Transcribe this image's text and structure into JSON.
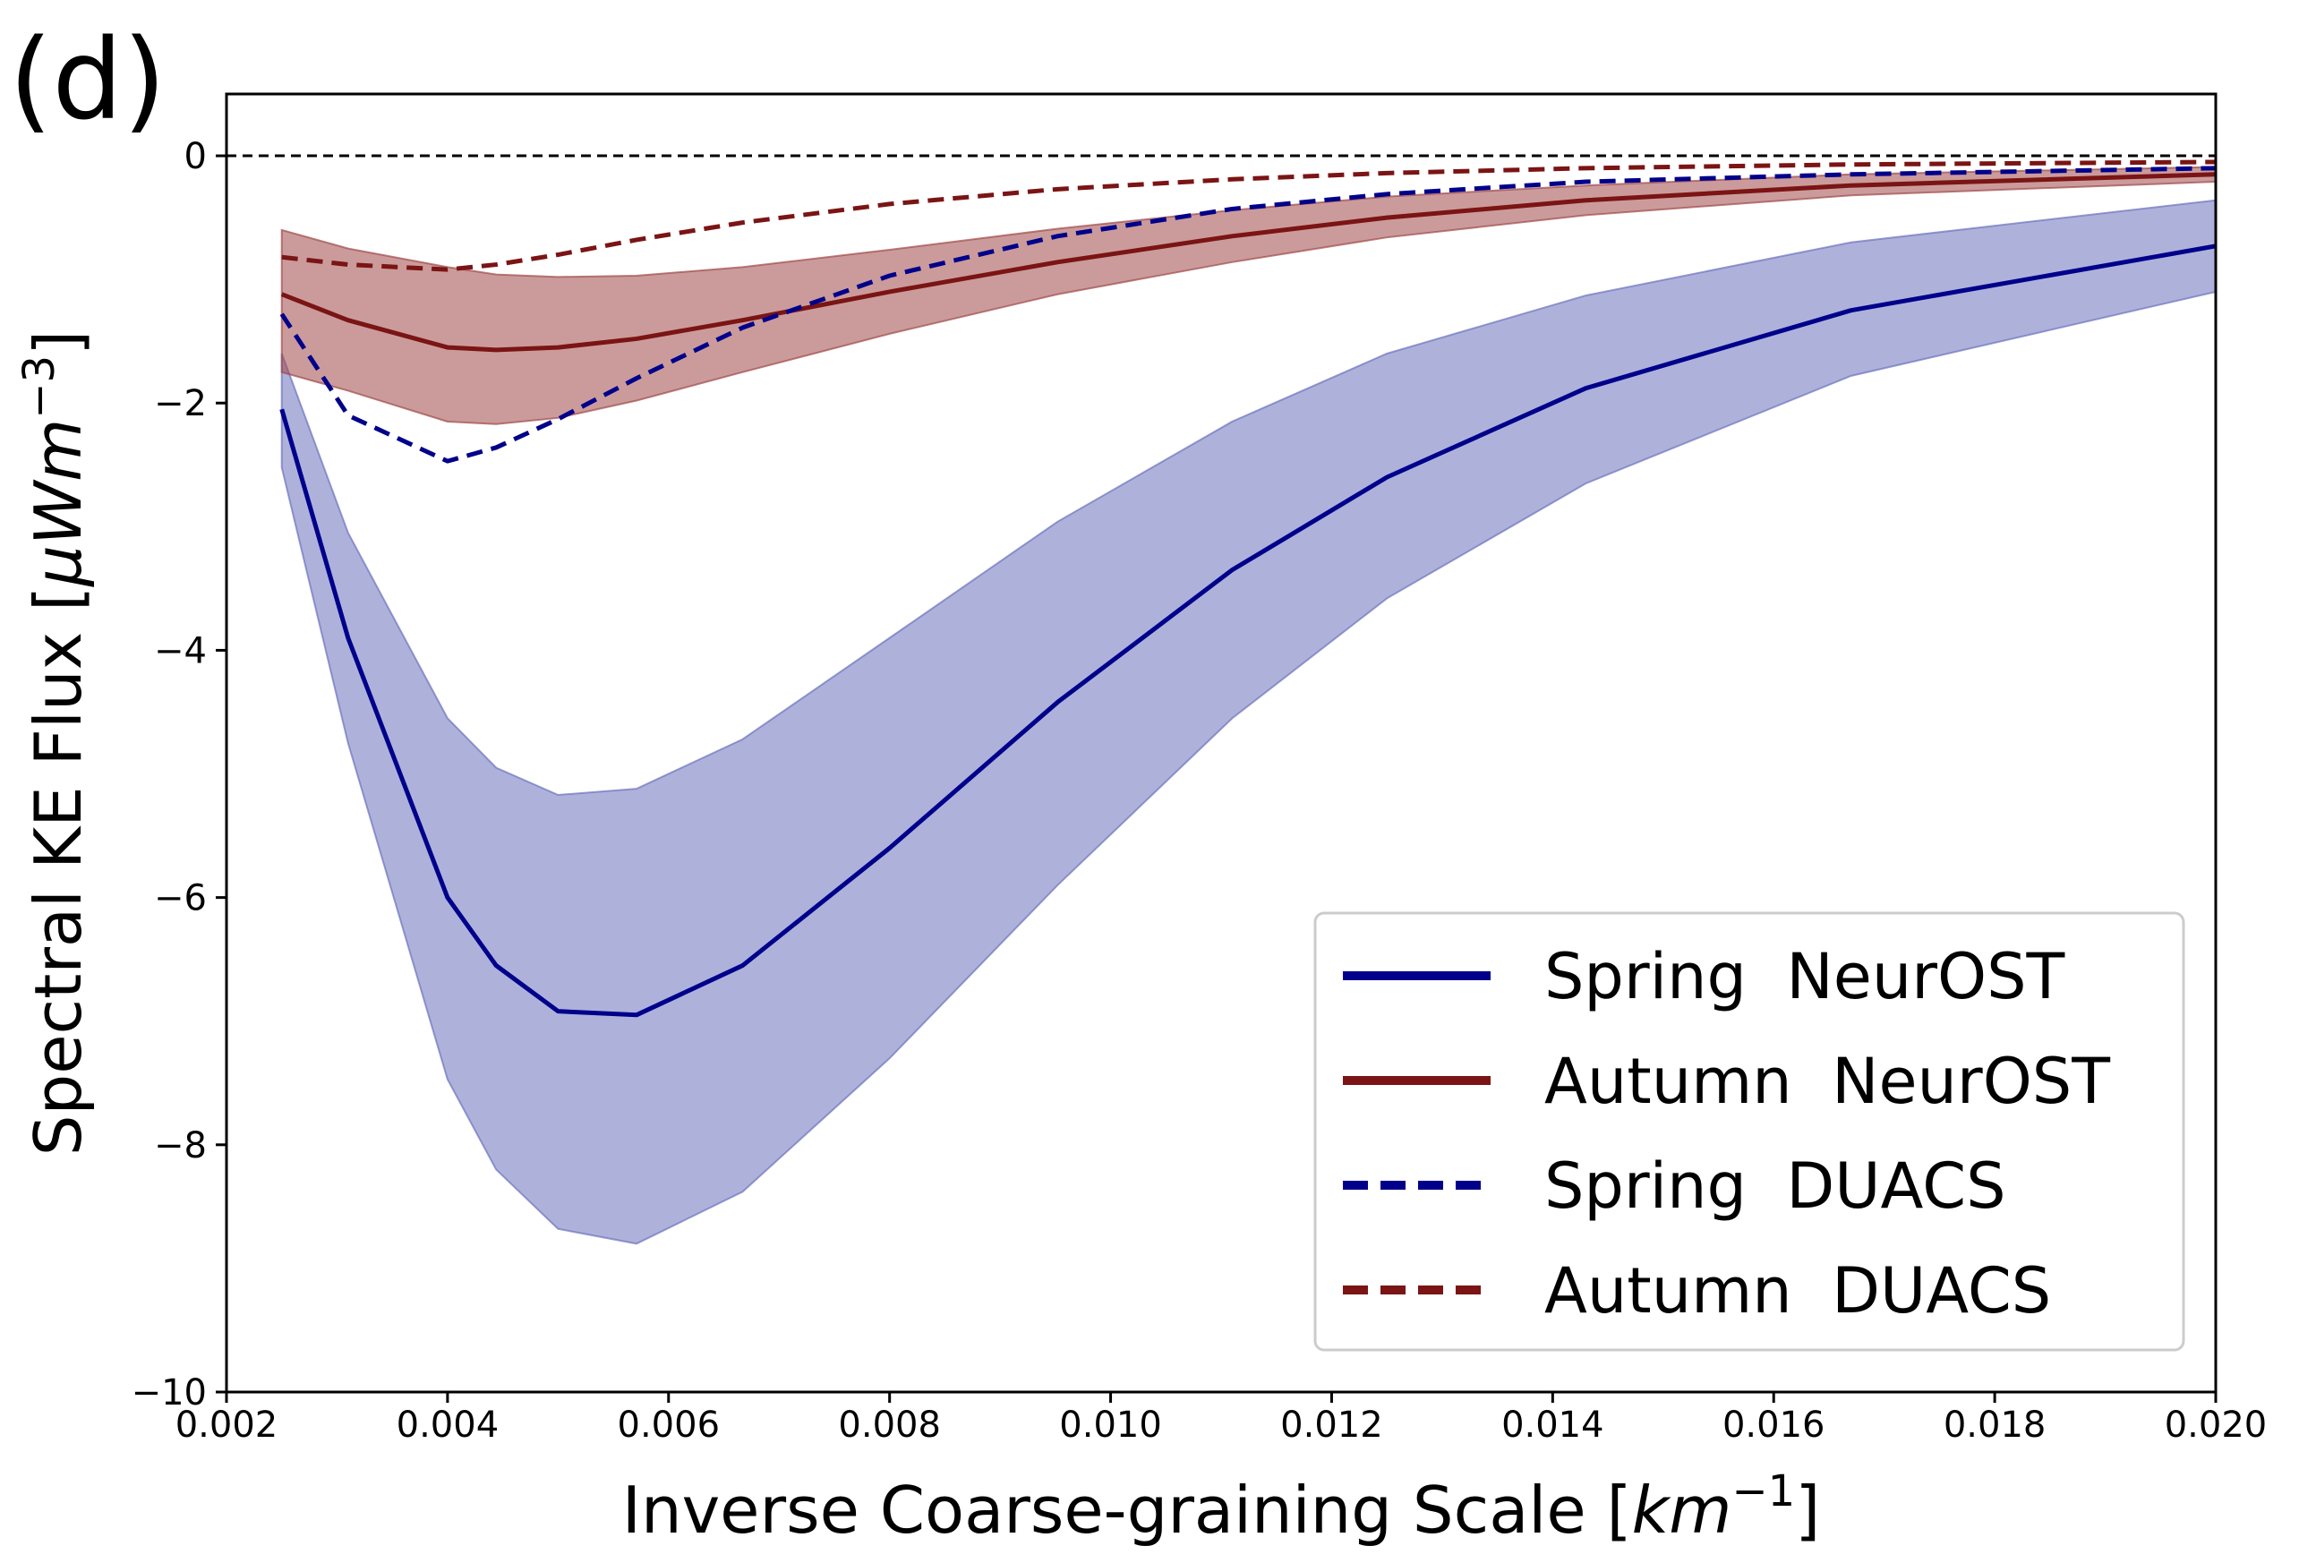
{
  "chart_data": {
    "type": "line",
    "panel_label": "(d)",
    "xlabel_main": "Inverse Coarse-graining Scale [",
    "xlabel_unit_base": "km",
    "xlabel_unit_exp": "−1",
    "xlabel_close": "]",
    "ylabel_main": "Spectral KE Flux [",
    "ylabel_unit_base": "μWm",
    "ylabel_unit_exp": "−3",
    "ylabel_close": "]",
    "xlim": [
      0.002,
      0.02
    ],
    "ylim": [
      -10,
      0.5
    ],
    "x_ticks": [
      0.002,
      0.004,
      0.006,
      0.008,
      0.01,
      0.012,
      0.014,
      0.016,
      0.018,
      0.02
    ],
    "x_tick_labels": [
      "0.002",
      "0.004",
      "0.006",
      "0.008",
      "0.010",
      "0.012",
      "0.014",
      "0.016",
      "0.018",
      "0.020"
    ],
    "y_ticks": [
      0,
      -2,
      -4,
      -6,
      -8,
      -10
    ],
    "y_tick_labels": [
      "0",
      "−2",
      "−4",
      "−6",
      "−8",
      "−10"
    ],
    "zero_line": 0,
    "grid": false,
    "legend_position": "lower-right",
    "series": [
      {
        "name": "Spring  NeurOST",
        "color": "#00008b",
        "style": "solid",
        "x": [
          0.0025,
          0.0031,
          0.004,
          0.00444,
          0.005,
          0.00571,
          0.00667,
          0.008,
          0.00952,
          0.0111,
          0.0125,
          0.0143,
          0.0167,
          0.02
        ],
        "y": [
          -2.05,
          -3.9,
          -6.0,
          -6.55,
          -6.92,
          -6.95,
          -6.55,
          -5.6,
          -4.42,
          -3.35,
          -2.6,
          -1.88,
          -1.25,
          -0.73
        ],
        "band_upper": [
          -1.6,
          -3.05,
          -4.55,
          -4.95,
          -5.17,
          -5.12,
          -4.72,
          -3.9,
          -2.96,
          -2.15,
          -1.6,
          -1.13,
          -0.7,
          -0.36
        ],
        "band_lower": [
          -2.52,
          -4.75,
          -7.47,
          -8.2,
          -8.68,
          -8.8,
          -8.38,
          -7.3,
          -5.9,
          -4.55,
          -3.58,
          -2.65,
          -1.78,
          -1.1
        ]
      },
      {
        "name": "Autumn  NeurOST",
        "color": "#7b1414",
        "style": "solid",
        "x": [
          0.0025,
          0.0031,
          0.004,
          0.00444,
          0.005,
          0.00571,
          0.00667,
          0.008,
          0.00952,
          0.0111,
          0.0125,
          0.0143,
          0.0167,
          0.02
        ],
        "y": [
          -1.12,
          -1.33,
          -1.55,
          -1.57,
          -1.55,
          -1.48,
          -1.33,
          -1.1,
          -0.86,
          -0.65,
          -0.5,
          -0.36,
          -0.24,
          -0.15
        ],
        "band_upper": [
          -0.6,
          -0.75,
          -0.9,
          -0.96,
          -0.98,
          -0.97,
          -0.9,
          -0.76,
          -0.59,
          -0.44,
          -0.33,
          -0.24,
          -0.15,
          -0.09
        ],
        "band_lower": [
          -1.75,
          -1.9,
          -2.15,
          -2.17,
          -2.12,
          -1.98,
          -1.75,
          -1.44,
          -1.12,
          -0.86,
          -0.66,
          -0.48,
          -0.32,
          -0.21
        ]
      },
      {
        "name": "Spring  DUACS",
        "color": "#00008b",
        "style": "dashed",
        "x": [
          0.0025,
          0.0031,
          0.004,
          0.00444,
          0.005,
          0.00571,
          0.00667,
          0.008,
          0.00952,
          0.0111,
          0.0125,
          0.0143,
          0.0167,
          0.02
        ],
        "y": [
          -1.28,
          -2.1,
          -2.47,
          -2.36,
          -2.13,
          -1.8,
          -1.39,
          -0.97,
          -0.65,
          -0.43,
          -0.31,
          -0.21,
          -0.15,
          -0.1
        ]
      },
      {
        "name": "Autumn  DUACS",
        "color": "#7b1414",
        "style": "dashed",
        "x": [
          0.0025,
          0.0031,
          0.004,
          0.00444,
          0.005,
          0.00571,
          0.00667,
          0.008,
          0.00952,
          0.0111,
          0.0125,
          0.0143,
          0.0167,
          0.02
        ],
        "y": [
          -0.82,
          -0.88,
          -0.92,
          -0.88,
          -0.8,
          -0.68,
          -0.54,
          -0.39,
          -0.27,
          -0.19,
          -0.14,
          -0.1,
          -0.07,
          -0.05
        ]
      }
    ],
    "band_colors": {
      "Spring  NeurOST": "#6b72bd",
      "Autumn  NeurOST": "#a04848"
    }
  }
}
